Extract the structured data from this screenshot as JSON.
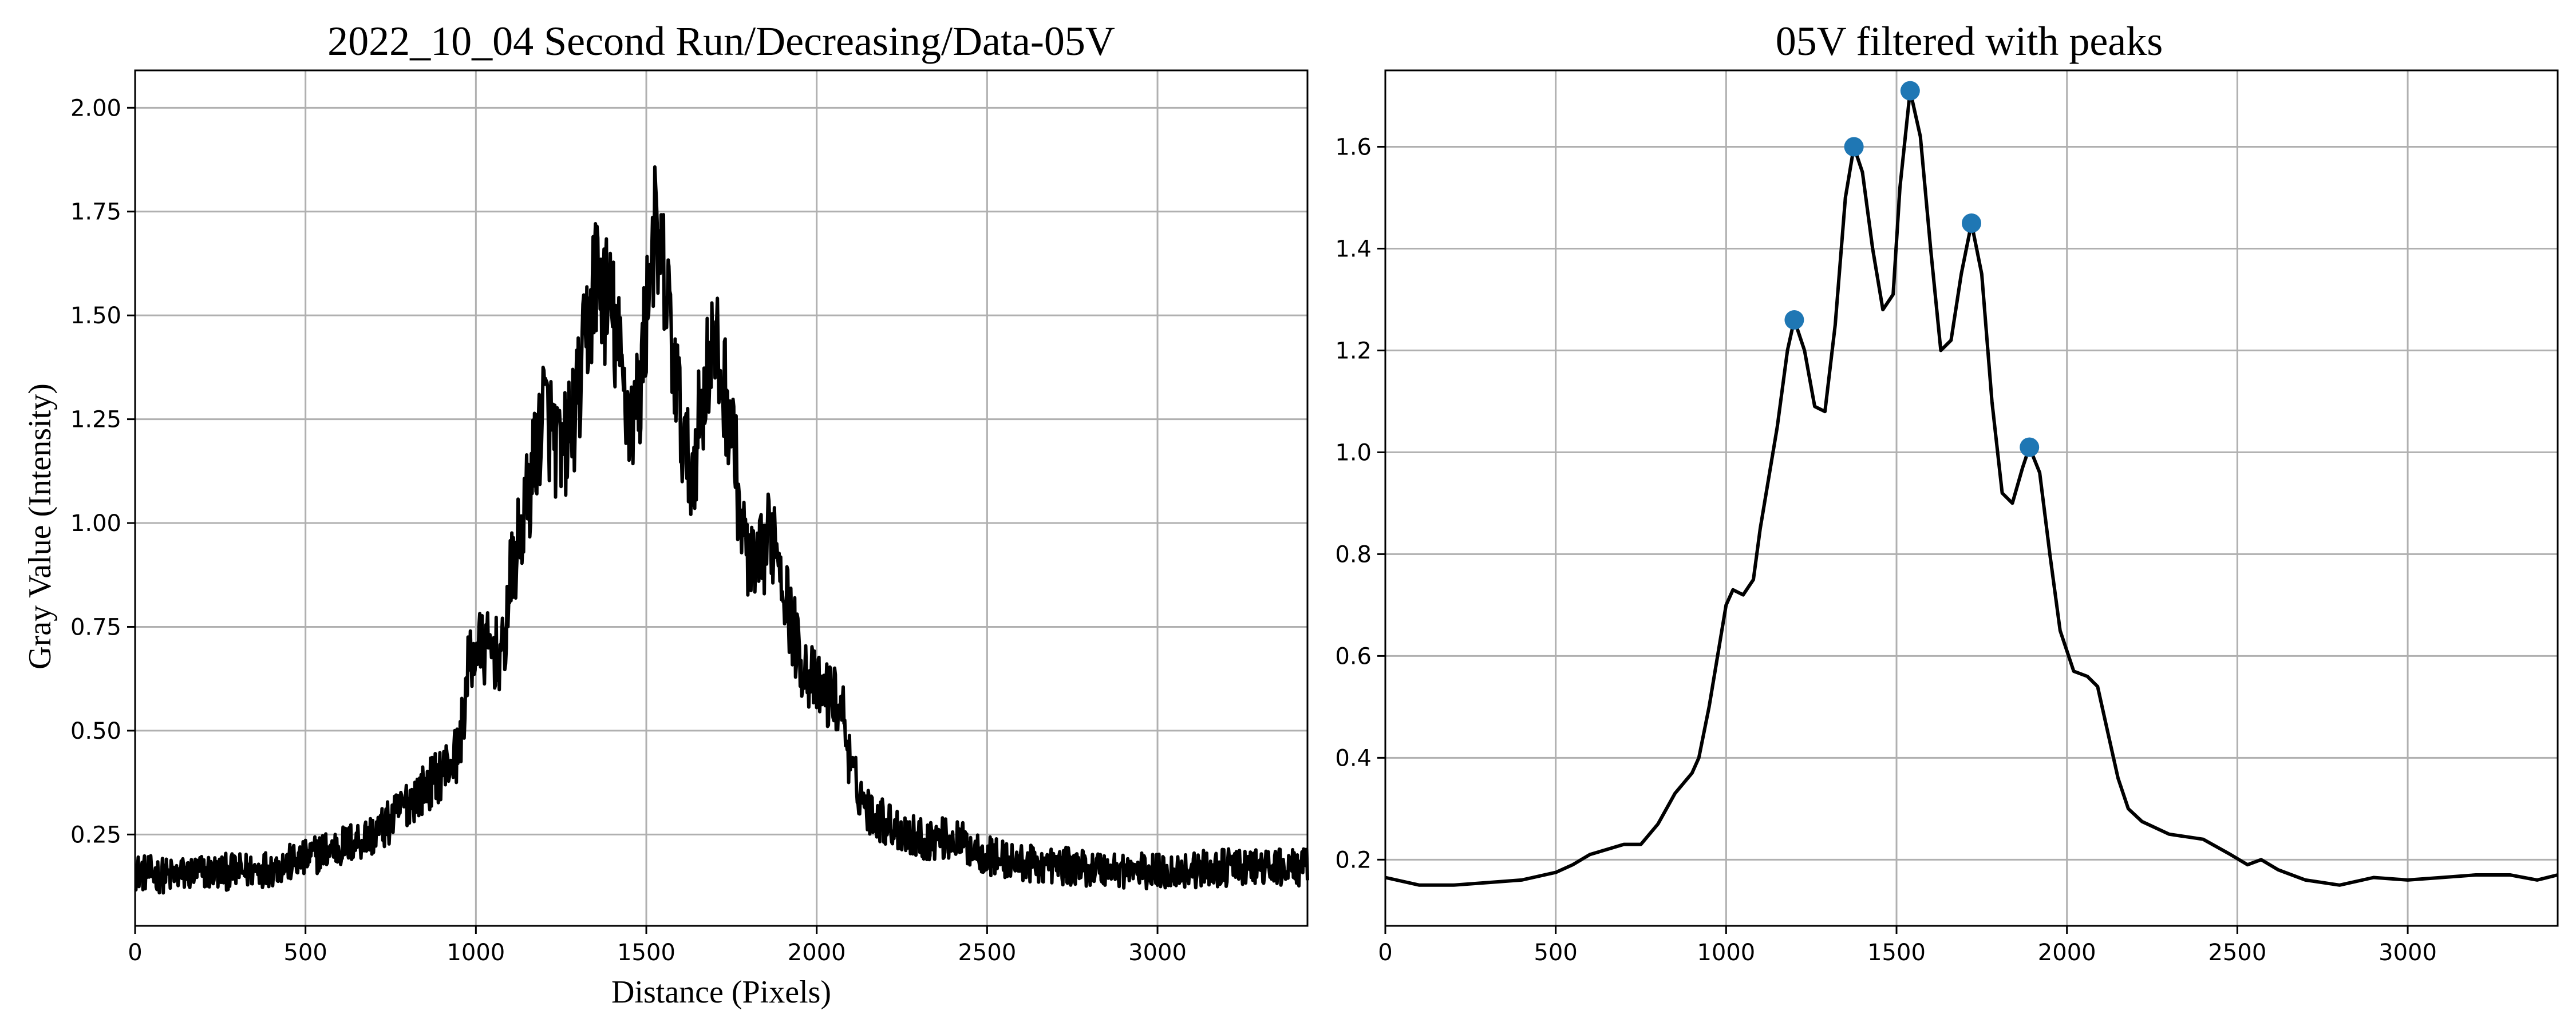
{
  "chart_data": [
    {
      "type": "line",
      "title": "2022_10_04 Second Run/Decreasing/Data-05V",
      "xlabel": "Distance (Pixels)",
      "ylabel": "Gray Value (Intensity)",
      "xlim": [
        0,
        3440
      ],
      "ylim": [
        0.03,
        2.09
      ],
      "xticks": [
        0,
        500,
        1000,
        1500,
        2000,
        2500,
        3000
      ],
      "yticks": [
        0.25,
        0.5,
        0.75,
        1.0,
        1.25,
        1.5,
        1.75,
        2.0
      ],
      "ytick_labels": [
        "0.25",
        "0.50",
        "0.75",
        "1.00",
        "1.25",
        "1.50",
        "1.75",
        "2.00"
      ],
      "grid": true,
      "line_color": "#000000",
      "series": [
        {
          "noisy": true,
          "points": [
            [
              0,
              0.16
            ],
            [
              100,
              0.15
            ],
            [
              200,
              0.16
            ],
            [
              300,
              0.16
            ],
            [
              400,
              0.17
            ],
            [
              500,
              0.19
            ],
            [
              550,
              0.21
            ],
            [
              600,
              0.22
            ],
            [
              700,
              0.25
            ],
            [
              750,
              0.28
            ],
            [
              800,
              0.33
            ],
            [
              850,
              0.36
            ],
            [
              900,
              0.4
            ],
            [
              950,
              0.45
            ],
            [
              980,
              0.66
            ],
            [
              1000,
              0.7
            ],
            [
              1050,
              0.69
            ],
            [
              1080,
              0.68
            ],
            [
              1100,
              0.85
            ],
            [
              1150,
              1.05
            ],
            [
              1200,
              1.28
            ],
            [
              1250,
              1.15
            ],
            [
              1300,
              1.3
            ],
            [
              1350,
              1.6
            ],
            [
              1400,
              1.5
            ],
            [
              1450,
              1.25
            ],
            [
              1480,
              1.3
            ],
            [
              1520,
              1.7
            ],
            [
              1560,
              1.55
            ],
            [
              1600,
              1.25
            ],
            [
              1630,
              1.1
            ],
            [
              1680,
              1.38
            ],
            [
              1700,
              1.42
            ],
            [
              1750,
              1.25
            ],
            [
              1780,
              0.98
            ],
            [
              1820,
              0.86
            ],
            [
              1850,
              0.95
            ],
            [
              1880,
              0.98
            ],
            [
              1920,
              0.78
            ],
            [
              1950,
              0.68
            ],
            [
              2000,
              0.6
            ],
            [
              2050,
              0.58
            ],
            [
              2080,
              0.54
            ],
            [
              2100,
              0.4
            ],
            [
              2150,
              0.31
            ],
            [
              2200,
              0.28
            ],
            [
              2300,
              0.24
            ],
            [
              2400,
              0.24
            ],
            [
              2500,
              0.2
            ],
            [
              2600,
              0.18
            ],
            [
              2800,
              0.17
            ],
            [
              3000,
              0.16
            ],
            [
              3200,
              0.17
            ],
            [
              3440,
              0.17
            ]
          ]
        }
      ]
    },
    {
      "type": "line",
      "title": "05V filtered with peaks",
      "xlabel": "",
      "ylabel": "",
      "xlim": [
        0,
        3440
      ],
      "ylim": [
        0.07,
        1.75
      ],
      "xticks": [
        0,
        500,
        1000,
        1500,
        2000,
        2500,
        3000
      ],
      "yticks": [
        0.2,
        0.4,
        0.6,
        0.8,
        1.0,
        1.2,
        1.4,
        1.6
      ],
      "ytick_labels": [
        "0.2",
        "0.4",
        "0.6",
        "0.8",
        "1.0",
        "1.2",
        "1.4",
        "1.6"
      ],
      "grid": true,
      "line_color": "#000000",
      "peak_color": "#1f77b4",
      "series": [
        {
          "points": [
            [
              0,
              0.165
            ],
            [
              100,
              0.15
            ],
            [
              200,
              0.15
            ],
            [
              300,
              0.155
            ],
            [
              400,
              0.16
            ],
            [
              500,
              0.175
            ],
            [
              550,
              0.19
            ],
            [
              600,
              0.21
            ],
            [
              650,
              0.22
            ],
            [
              700,
              0.23
            ],
            [
              750,
              0.23
            ],
            [
              800,
              0.27
            ],
            [
              850,
              0.33
            ],
            [
              900,
              0.37
            ],
            [
              920,
              0.4
            ],
            [
              950,
              0.5
            ],
            [
              980,
              0.62
            ],
            [
              1000,
              0.7
            ],
            [
              1020,
              0.73
            ],
            [
              1050,
              0.72
            ],
            [
              1080,
              0.75
            ],
            [
              1100,
              0.85
            ],
            [
              1150,
              1.05
            ],
            [
              1180,
              1.2
            ],
            [
              1200,
              1.26
            ],
            [
              1230,
              1.2
            ],
            [
              1260,
              1.09
            ],
            [
              1290,
              1.08
            ],
            [
              1320,
              1.25
            ],
            [
              1350,
              1.5
            ],
            [
              1375,
              1.6
            ],
            [
              1400,
              1.55
            ],
            [
              1430,
              1.4
            ],
            [
              1460,
              1.28
            ],
            [
              1490,
              1.31
            ],
            [
              1510,
              1.52
            ],
            [
              1540,
              1.71
            ],
            [
              1570,
              1.62
            ],
            [
              1600,
              1.4
            ],
            [
              1630,
              1.2
            ],
            [
              1660,
              1.22
            ],
            [
              1690,
              1.35
            ],
            [
              1720,
              1.45
            ],
            [
              1750,
              1.35
            ],
            [
              1780,
              1.1
            ],
            [
              1810,
              0.92
            ],
            [
              1840,
              0.9
            ],
            [
              1870,
              0.97
            ],
            [
              1890,
              1.01
            ],
            [
              1920,
              0.96
            ],
            [
              1950,
              0.8
            ],
            [
              1980,
              0.65
            ],
            [
              2020,
              0.57
            ],
            [
              2060,
              0.56
            ],
            [
              2090,
              0.54
            ],
            [
              2120,
              0.45
            ],
            [
              2150,
              0.36
            ],
            [
              2180,
              0.3
            ],
            [
              2220,
              0.275
            ],
            [
              2300,
              0.25
            ],
            [
              2400,
              0.24
            ],
            [
              2480,
              0.21
            ],
            [
              2530,
              0.19
            ],
            [
              2570,
              0.2
            ],
            [
              2620,
              0.18
            ],
            [
              2700,
              0.16
            ],
            [
              2800,
              0.15
            ],
            [
              2900,
              0.165
            ],
            [
              3000,
              0.16
            ],
            [
              3100,
              0.165
            ],
            [
              3200,
              0.17
            ],
            [
              3300,
              0.17
            ],
            [
              3380,
              0.16
            ],
            [
              3440,
              0.17
            ]
          ]
        }
      ],
      "peaks": [
        [
          1200,
          1.26
        ],
        [
          1375,
          1.6
        ],
        [
          1540,
          1.71
        ],
        [
          1720,
          1.45
        ],
        [
          1890,
          1.01
        ]
      ]
    }
  ]
}
